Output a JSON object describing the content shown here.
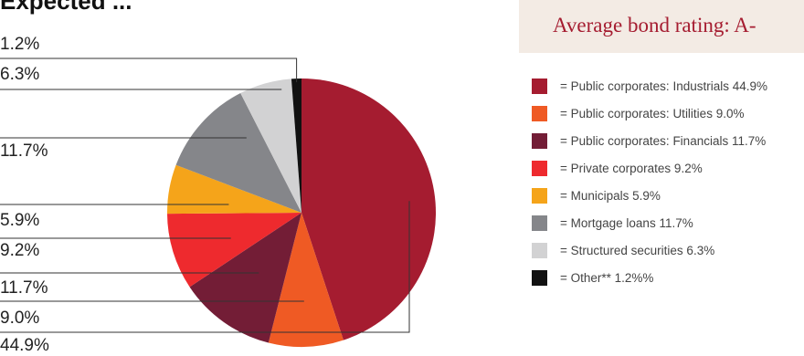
{
  "header": {
    "title_fragment": "Expected ..."
  },
  "rating": {
    "text": "Average bond rating: A-"
  },
  "chart_data": {
    "type": "pie",
    "slices": [
      {
        "label": "Public corporates: Industrials",
        "value": 44.9,
        "callout": "44.9%",
        "legend": "= Public corporates: Industrials 44.9%",
        "color": "#a51c30"
      },
      {
        "label": "Public corporates: Utilities",
        "value": 9.0,
        "callout": "9.0%",
        "legend": "= Public corporates: Utilities 9.0%",
        "color": "#ef5a24"
      },
      {
        "label": "Public corporates: Financials",
        "value": 11.7,
        "callout": "11.7%",
        "legend": "= Public corporates: Financials 11.7%",
        "color": "#731d36"
      },
      {
        "label": "Private corporates",
        "value": 9.2,
        "callout": "9.2%",
        "legend": "= Private corporates 9.2%",
        "color": "#ee2a2e"
      },
      {
        "label": "Municipals",
        "value": 5.9,
        "callout": "5.9%",
        "legend": "= Municipals 5.9%",
        "color": "#f5a41a"
      },
      {
        "label": "Mortgage loans",
        "value": 11.7,
        "callout": "11.7%",
        "legend": "= Mortgage loans 11.7%",
        "color": "#85868a"
      },
      {
        "label": "Structured securities",
        "value": 6.3,
        "callout": "6.3%",
        "legend": "= Structured securities 6.3%",
        "color": "#d2d2d3"
      },
      {
        "label": "Other**",
        "value": 1.2,
        "callout": "1.2%",
        "legend": "= Other** 1.2%%",
        "color": "#111111"
      }
    ]
  }
}
